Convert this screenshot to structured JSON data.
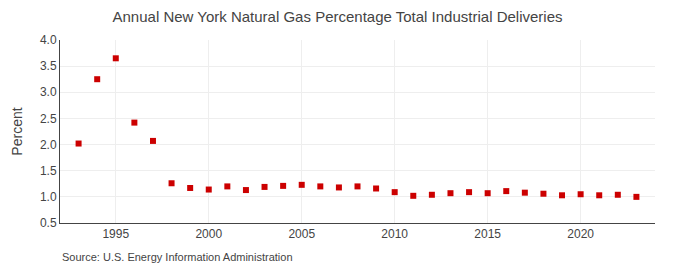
{
  "chart_data": {
    "type": "scatter",
    "title": "Annual New York Natural Gas Percentage Total Industrial Deliveries",
    "ylabel": "Percent",
    "annotations": [
      "Source: U.S. Energy Information Administration"
    ],
    "x": [
      1993,
      1994,
      1995,
      1996,
      1997,
      1998,
      1999,
      2000,
      2001,
      2002,
      2003,
      2004,
      2005,
      2006,
      2007,
      2008,
      2009,
      2010,
      2011,
      2012,
      2013,
      2014,
      2015,
      2016,
      2017,
      2018,
      2019,
      2020,
      2021,
      2022,
      2023
    ],
    "values": [
      2.02,
      3.25,
      3.65,
      2.42,
      2.07,
      1.26,
      1.17,
      1.14,
      1.2,
      1.13,
      1.19,
      1.21,
      1.23,
      1.2,
      1.18,
      1.2,
      1.16,
      1.09,
      1.02,
      1.04,
      1.07,
      1.09,
      1.07,
      1.11,
      1.08,
      1.06,
      1.03,
      1.05,
      1.03,
      1.04,
      1.0
    ],
    "color": "#cc0000",
    "marker": "square",
    "xlim": [
      1992.0,
      2024.0
    ],
    "xticks": [
      1995,
      2000,
      2005,
      2010,
      2015,
      2020
    ],
    "ylim": [
      0.5,
      4.0
    ],
    "yticks": [
      0.5,
      {
        "value": 1.0,
        "label": "1.0"
      },
      1.5,
      {
        "value": 2.0,
        "label": "2.0"
      },
      2.5,
      {
        "value": 3.0,
        "label": "3.0"
      },
      3.5,
      {
        "value": 4.0,
        "label": "4.0"
      }
    ],
    "grid": true
  }
}
